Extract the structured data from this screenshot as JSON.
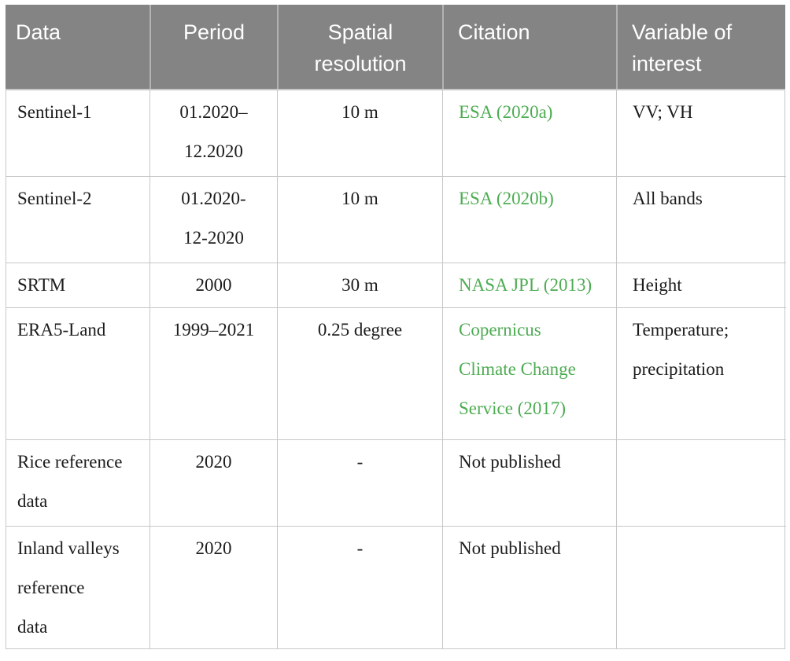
{
  "colors": {
    "header_bg": "#848484",
    "citation_green": "#4dac52",
    "table_border": "#c7c7c7",
    "body_text": "#1c1c1c",
    "header_text": "#ffffff"
  },
  "table": {
    "headers": [
      "Data",
      "Period",
      "Spatial\nresolution",
      "Citation",
      "Variable of\ninterest"
    ],
    "rows": [
      {
        "data": "Sentinel-1",
        "period": "01.2020–\n12.2020",
        "resolution": "10 m",
        "citation": "ESA (2020a)",
        "variable": "VV; VH"
      },
      {
        "data": "Sentinel-2",
        "period": "01.2020-\n12-2020",
        "resolution": "10 m",
        "citation": "ESA (2020b)",
        "variable": "All bands"
      },
      {
        "data": "SRTM",
        "period": "2000",
        "resolution": "30 m",
        "citation": "NASA JPL (2013)",
        "variable": "Height"
      },
      {
        "data": "ERA5-Land",
        "period": "1999–2021",
        "resolution": "0.25 degree",
        "citation": "Copernicus\nClimate Change\nService (2017)",
        "variable": "Temperature;\nprecipitation"
      },
      {
        "data": "Rice reference\ndata",
        "period": "2020",
        "resolution": "-",
        "citation": "Not published",
        "variable": ""
      },
      {
        "data": "Inland valleys\nreference\ndata",
        "period": "2020",
        "resolution": "-",
        "citation": "Not published",
        "variable": ""
      }
    ]
  }
}
